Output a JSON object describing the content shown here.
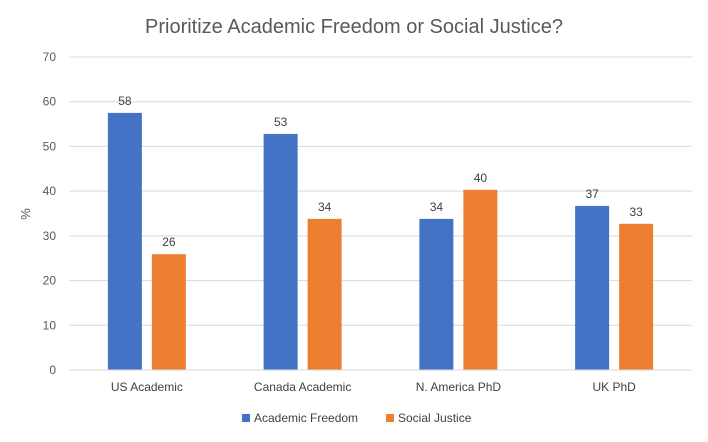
{
  "chart_data": {
    "type": "bar",
    "title": "Prioritize Academic Freedom or Social Justice?",
    "ylabel": "%",
    "xlabel": "",
    "ylim": [
      0,
      70
    ],
    "yticks": [
      0,
      10,
      20,
      30,
      40,
      50,
      60,
      70
    ],
    "grid": true,
    "legend_position": "bottom",
    "categories": [
      "US Academic",
      "Canada Academic",
      "N. America PhD",
      "UK PhD"
    ],
    "series": [
      {
        "name": "Academic Freedom",
        "color": "#4472C4",
        "values": [
          57.5,
          52.8,
          33.8,
          36.7
        ],
        "labels": [
          "58",
          "53",
          "34",
          "37"
        ]
      },
      {
        "name": "Social Justice",
        "color": "#ED7D31",
        "values": [
          25.9,
          33.8,
          40.3,
          32.7
        ],
        "labels": [
          "26",
          "34",
          "40",
          "33"
        ]
      }
    ]
  }
}
